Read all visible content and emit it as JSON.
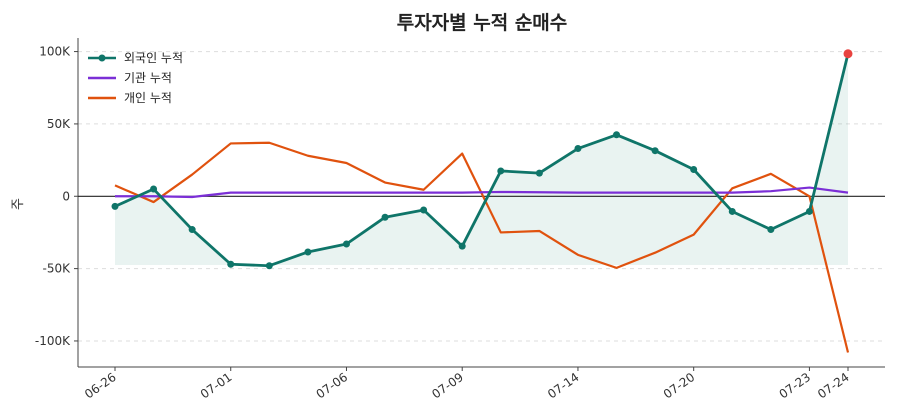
{
  "chart_data": {
    "type": "line",
    "title": "투자자별 누적 순매수",
    "xlabel": "",
    "ylabel": "주",
    "ylim": [
      -118000,
      108000
    ],
    "yticks": [
      100000,
      50000,
      0,
      -50000,
      -100000
    ],
    "ytick_labels": [
      "100K",
      "50K",
      "0",
      "-50K",
      "-100K"
    ],
    "x": [
      "06-26",
      "06-27",
      "06-28",
      "07-01",
      "07-02",
      "07-03",
      "07-06",
      "07-07",
      "07-08",
      "07-09",
      "07-10",
      "07-13",
      "07-14",
      "07-15",
      "07-16",
      "07-20",
      "07-21",
      "07-22",
      "07-23",
      "07-24"
    ],
    "xtick_labels": [
      "06-26",
      "07-01",
      "07-06",
      "07-09",
      "07-14",
      "07-20",
      "07-23",
      "07-24"
    ],
    "legend_position": "top-left",
    "grid": true,
    "series": [
      {
        "name": "외국인 누적",
        "color": "#0f7569",
        "marker": true,
        "values": [
          -7000,
          5000,
          -23000,
          -47000,
          -48000,
          -38500,
          -33000,
          -14500,
          -9500,
          -34500,
          17500,
          16000,
          33000,
          42500,
          31500,
          18500,
          -10500,
          -23000,
          -10500,
          98500
        ]
      },
      {
        "name": "기관 누적",
        "color": "#7b2fd6",
        "marker": false,
        "values": [
          0,
          0,
          -500,
          2500,
          2500,
          2500,
          2500,
          2500,
          2500,
          2500,
          3000,
          2800,
          2500,
          2500,
          2500,
          2500,
          2500,
          3500,
          6000,
          2500
        ]
      },
      {
        "name": "개인 누적",
        "color": "#e0520e",
        "marker": false,
        "values": [
          7500,
          -4000,
          15000,
          36500,
          37000,
          28000,
          23000,
          9500,
          4500,
          29500,
          -25000,
          -24000,
          -40500,
          -49500,
          -39000,
          -26500,
          5500,
          15500,
          0,
          -108000
        ]
      }
    ],
    "fill_baseline": -47500
  }
}
